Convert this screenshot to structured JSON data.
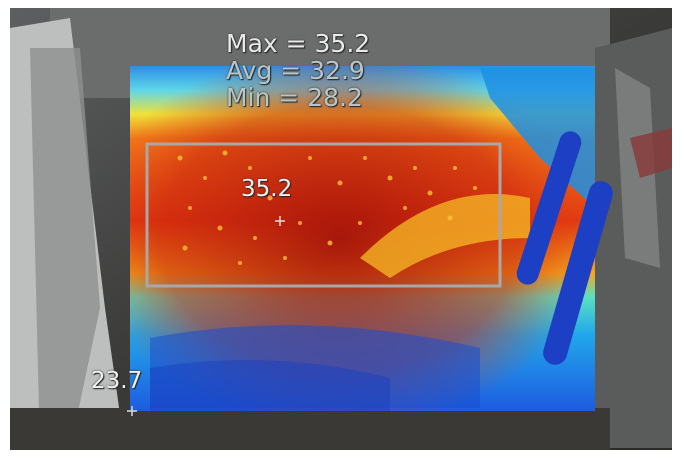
{
  "thermal_overlay": {
    "stats": {
      "max_text": "Max = 35.2",
      "avg_text": "Avg = 32.9",
      "min_text": "Min = 28.2"
    },
    "hot_spot": {
      "value": "35.2"
    },
    "cold_spot": {
      "value": "23.7"
    },
    "palette": {
      "cold": "#1e5be0",
      "cool": "#21a6ea",
      "mid": "#74e6b8",
      "warm": "#f2e23a",
      "hot": "#e23a12",
      "hottest": "#b6160a",
      "box_outline": "#a8a8a8"
    }
  }
}
